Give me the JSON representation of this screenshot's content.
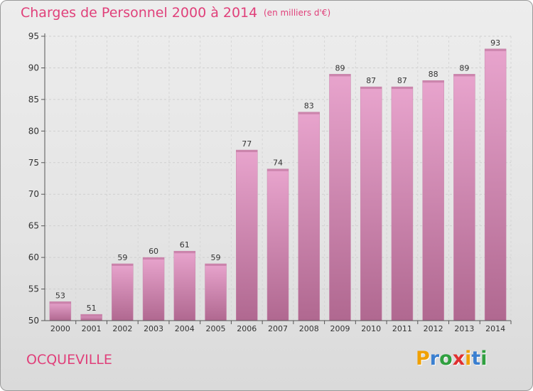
{
  "title": "Charges de Personnel 2000 à 2014",
  "subtitle": "(en milliers d'€)",
  "commune": "OCQUEVILLE",
  "logo": {
    "letters": [
      "P",
      "r",
      "o",
      "x",
      "i",
      "t",
      "i"
    ],
    "colors": [
      "#f0a000",
      "#3a7fd0",
      "#30a040",
      "#e03030",
      "#f0a000",
      "#3a7fd0",
      "#30a040"
    ]
  },
  "colors": {
    "bar_top": "#e8a4cd",
    "bar_bottom": "#b06890",
    "text_accent": "#e0407a"
  },
  "chart_data": {
    "type": "bar",
    "title": "Charges de Personnel 2000 à 2014",
    "subtitle": "(en milliers d'€)",
    "categories": [
      "2000",
      "2001",
      "2002",
      "2003",
      "2004",
      "2005",
      "2006",
      "2007",
      "2008",
      "2009",
      "2010",
      "2011",
      "2012",
      "2013",
      "2014"
    ],
    "values": [
      53,
      51,
      59,
      60,
      61,
      59,
      77,
      74,
      83,
      89,
      87,
      87,
      88,
      89,
      93
    ],
    "ylim": [
      50,
      95
    ],
    "yticks": [
      50,
      55,
      60,
      65,
      70,
      75,
      80,
      85,
      90,
      95
    ],
    "grid": true,
    "legend": "none"
  }
}
